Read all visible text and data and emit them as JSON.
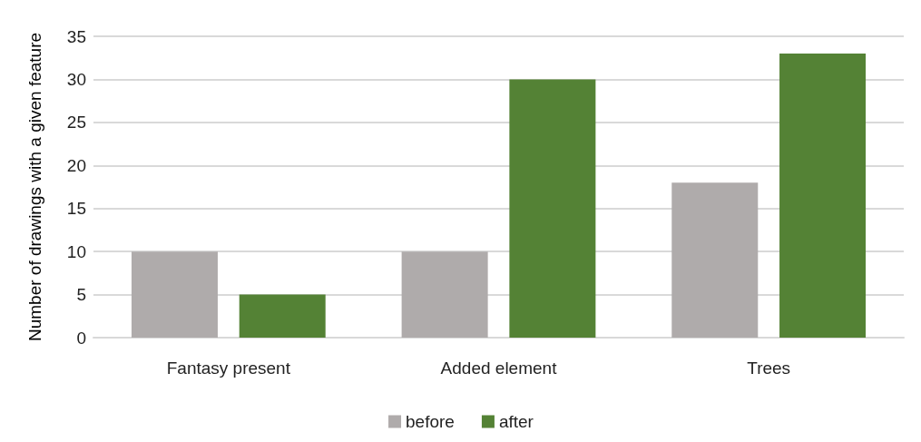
{
  "chart_data": {
    "type": "bar",
    "ylabel": "Number of drawings with a given feature",
    "categories": [
      "Fantasy present",
      "Added element",
      "Trees"
    ],
    "series": [
      {
        "name": "before",
        "color": "#afabab",
        "values": [
          10,
          10,
          18
        ]
      },
      {
        "name": "after",
        "color": "#548235",
        "values": [
          5,
          30,
          33
        ]
      }
    ],
    "ylim": [
      0,
      35
    ],
    "yticks": [
      0,
      5,
      10,
      15,
      20,
      25,
      30,
      35
    ],
    "grid": "y",
    "legend": "bottom"
  }
}
